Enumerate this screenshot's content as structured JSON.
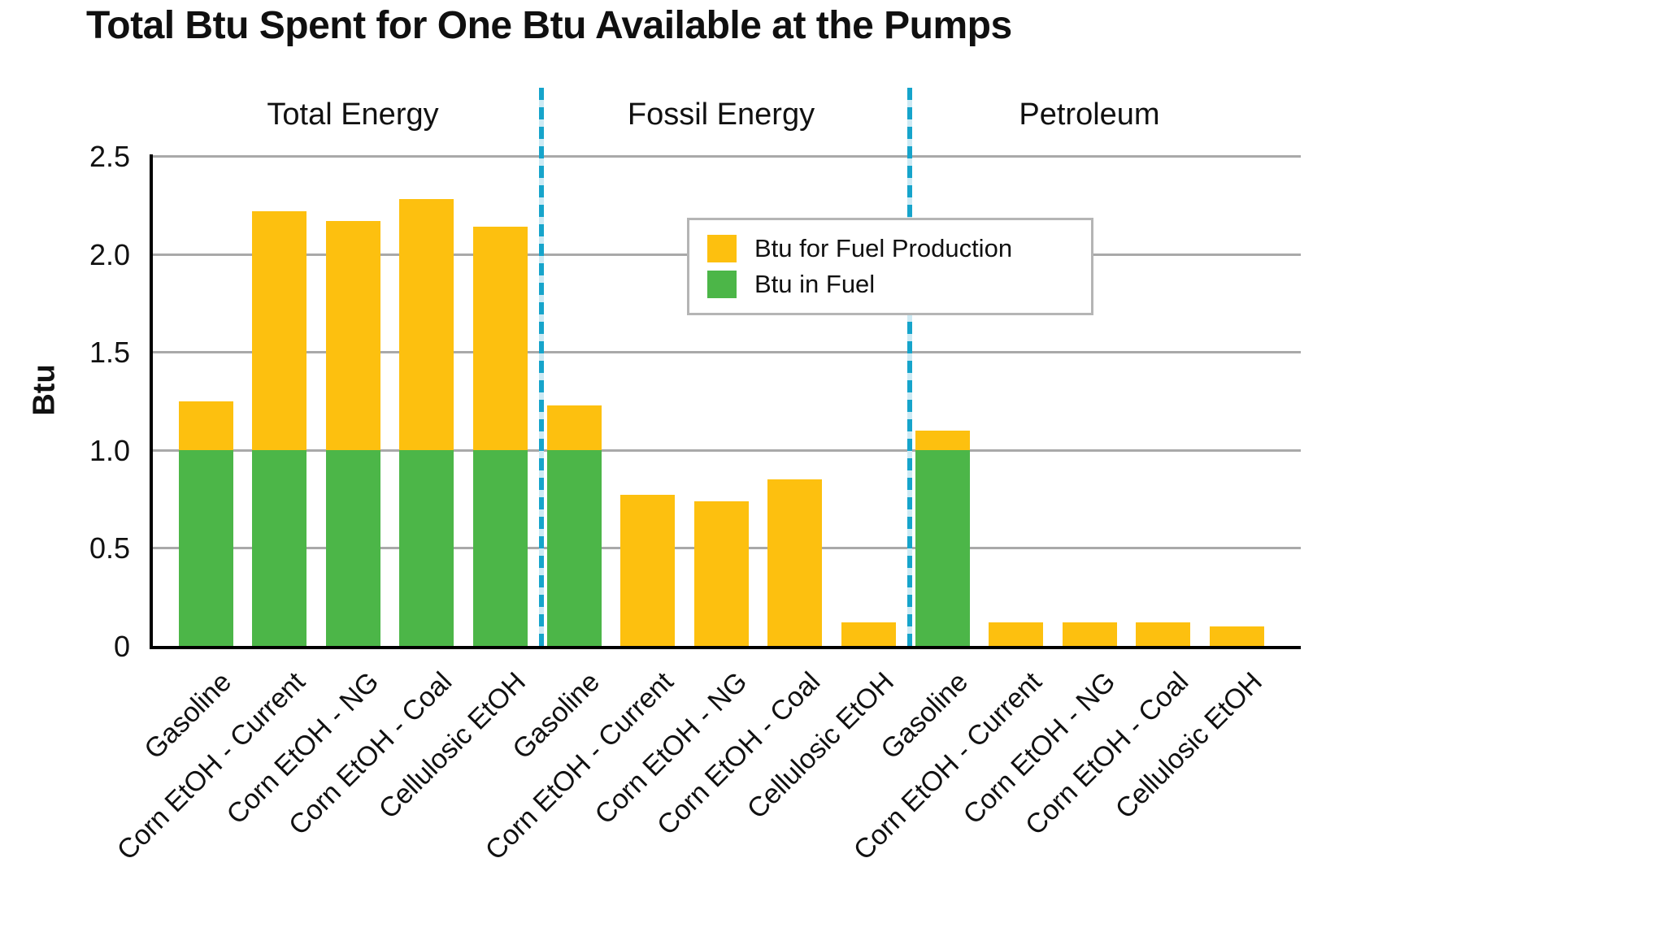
{
  "chart_data": {
    "type": "bar",
    "stacked": true,
    "title": "Total Btu Spent for One Btu Available at the Pumps",
    "ylabel": "Btu",
    "ylim": [
      0,
      2.5
    ],
    "y_ticks": [
      0,
      0.5,
      1.0,
      1.5,
      2.0,
      2.5
    ],
    "y_tick_labels": [
      "0",
      "0.5",
      "1.0",
      "1.5",
      "2.0",
      "2.5"
    ],
    "grid": true,
    "categories": [
      "Gasoline",
      "Corn EtOH - Current",
      "Corn EtOH - NG",
      "Corn EtOH - Coal",
      "Cellulosic EtOH"
    ],
    "groups": [
      {
        "label": "Total Energy",
        "btu_in_fuel": [
          1.0,
          1.0,
          1.0,
          1.0,
          1.0
        ],
        "btu_for_fuel_production": [
          0.25,
          1.22,
          1.17,
          1.28,
          1.14
        ],
        "totals": [
          1.25,
          2.22,
          2.17,
          2.28,
          2.14
        ]
      },
      {
        "label": "Fossil Energy",
        "btu_in_fuel": [
          1.0,
          0,
          0,
          0,
          0
        ],
        "btu_for_fuel_production": [
          0.23,
          0.77,
          0.74,
          0.85,
          0.12
        ],
        "totals": [
          1.23,
          0.77,
          0.74,
          0.85,
          0.12
        ]
      },
      {
        "label": "Petroleum",
        "btu_in_fuel": [
          1.0,
          0,
          0,
          0,
          0
        ],
        "btu_for_fuel_production": [
          0.1,
          0.12,
          0.12,
          0.12,
          0.1
        ],
        "totals": [
          1.1,
          0.12,
          0.12,
          0.12,
          0.1
        ]
      }
    ],
    "legend": {
      "items": [
        {
          "label": "Btu for Fuel Production",
          "color": "#fdc00f"
        },
        {
          "label": "Btu in Fuel",
          "color": "#4cb648"
        }
      ],
      "position": "inside upper right"
    },
    "colors": {
      "btu_for_fuel_production": "#fdc00f",
      "btu_in_fuel": "#4cb648",
      "separator_line": "#16a4cb",
      "gridline": "#a9a9a9",
      "axis": "#000000",
      "legend_border": "#b5b5b5",
      "text": "#101010"
    }
  }
}
